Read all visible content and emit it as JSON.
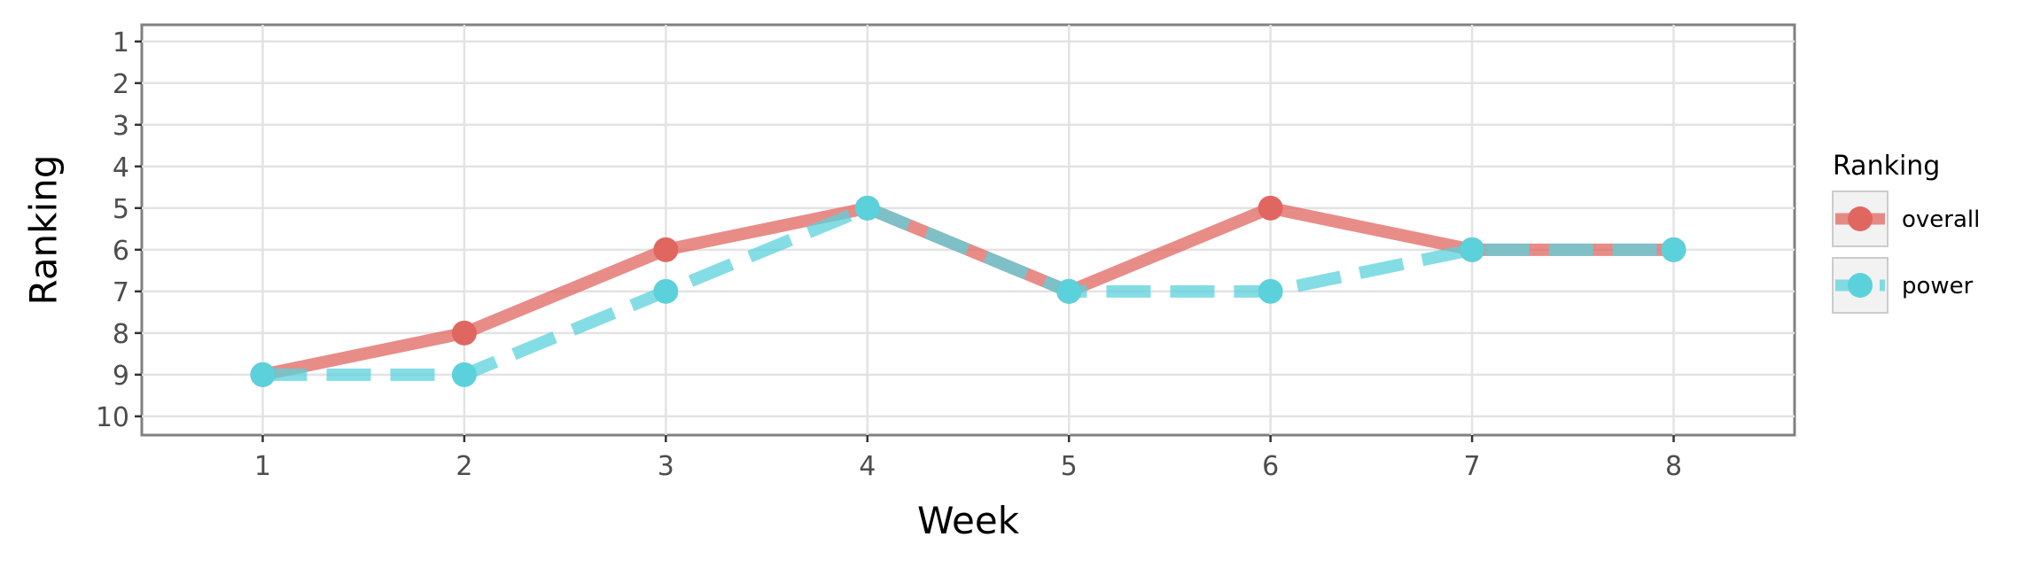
{
  "chart_data": {
    "type": "line",
    "xlabel": "Week",
    "ylabel": "Ranking",
    "x": [
      1,
      2,
      3,
      4,
      5,
      6,
      7,
      8
    ],
    "xlim": [
      0.4,
      8.6
    ],
    "ylim": [
      10.45,
      0.6
    ],
    "y_reversed": true,
    "yticks": [
      1,
      2,
      3,
      4,
      5,
      6,
      7,
      8,
      9,
      10
    ],
    "grid": true,
    "legend": {
      "title": "Ranking",
      "position": "right"
    },
    "series": [
      {
        "name": "overall",
        "values": [
          9,
          8,
          6,
          5,
          7,
          5,
          6,
          6
        ],
        "color": "#e06660",
        "line_style": "solid"
      },
      {
        "name": "power",
        "values": [
          9,
          9,
          7,
          5,
          7,
          7,
          6,
          6
        ],
        "color": "#5bd1db",
        "line_style": "dashed"
      }
    ]
  }
}
